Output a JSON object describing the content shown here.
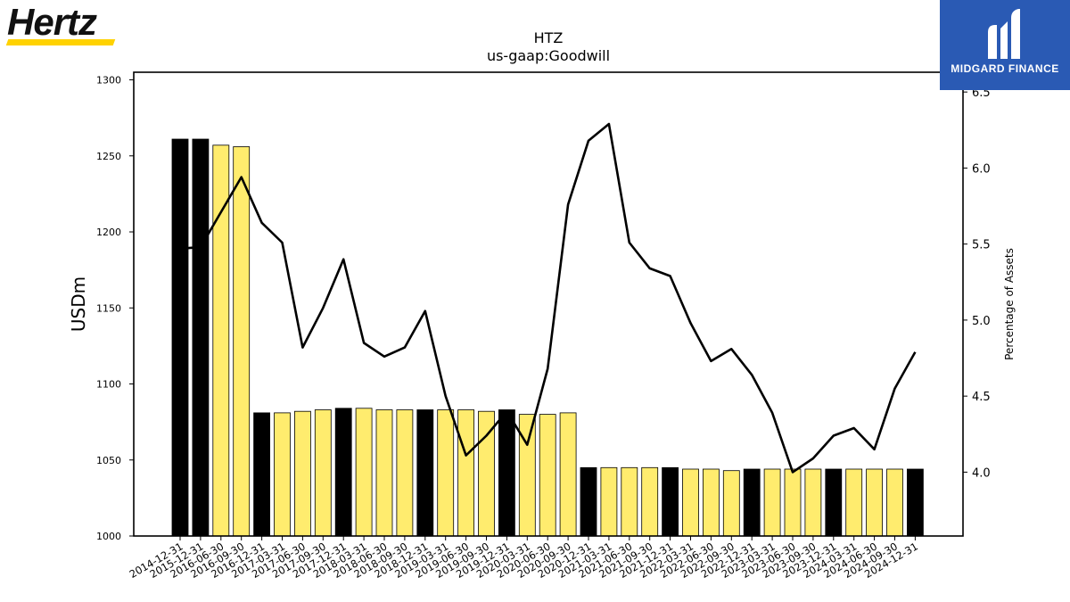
{
  "logos": {
    "hertz": "Hertz",
    "midgard": "MIDGARD FINANCE"
  },
  "colors": {
    "bar_dark": "#000000",
    "bar_light": "#ffec6e",
    "line": "#000000",
    "midgard_blue": "#2a5ab4",
    "hertz_yellow": "#ffd200"
  },
  "chart_data": {
    "type": "bar",
    "title": "HTZ",
    "subtitle": "us-gaap:Goodwill",
    "ylabel": "USDm",
    "y2label": "Percentage of Assets",
    "ylim": [
      1000,
      1305
    ],
    "y2lim": [
      3.58,
      6.63
    ],
    "yticks": [
      "1000",
      "1050",
      "1100",
      "1150",
      "1200",
      "1250",
      "1300"
    ],
    "y2ticks": [
      "4.0",
      "4.5",
      "5.0",
      "5.5",
      "6.0",
      "6.5"
    ],
    "categories": [
      "2014-12-31",
      "2015-12-31",
      "2016-06-30",
      "2016-09-30",
      "2016-12-31",
      "2017-03-31",
      "2017-06-30",
      "2017-09-30",
      "2017-12-31",
      "2018-03-31",
      "2018-06-30",
      "2018-09-30",
      "2018-12-31",
      "2019-03-31",
      "2019-06-30",
      "2019-09-30",
      "2019-12-31",
      "2020-03-31",
      "2020-06-30",
      "2020-09-30",
      "2020-12-31",
      "2021-03-31",
      "2021-06-30",
      "2021-09-30",
      "2021-12-31",
      "2022-03-31",
      "2022-06-30",
      "2022-09-30",
      "2022-12-31",
      "2023-03-31",
      "2023-06-30",
      "2023-09-30",
      "2023-12-31",
      "2024-03-31",
      "2024-06-30",
      "2024-09-30",
      "2024-12-31"
    ],
    "series": [
      {
        "type": "bar",
        "axis": "left",
        "values": [
          1261,
          1261,
          1257,
          1256,
          1081,
          1081,
          1082,
          1083,
          1084,
          1084,
          1083,
          1083,
          1083,
          1083,
          1083,
          1082,
          1083,
          1080,
          1080,
          1081,
          1045,
          1045,
          1045,
          1045,
          1045,
          1044,
          1044,
          1043,
          1044,
          1044,
          1044,
          1044,
          1044,
          1044,
          1044,
          1044,
          1044
        ],
        "dark": [
          true,
          true,
          false,
          false,
          true,
          false,
          false,
          false,
          true,
          false,
          false,
          false,
          true,
          false,
          false,
          false,
          true,
          false,
          false,
          false,
          true,
          false,
          false,
          false,
          true,
          false,
          false,
          false,
          true,
          false,
          false,
          false,
          true,
          false,
          false,
          false,
          true
        ]
      },
      {
        "type": "line",
        "axis": "right",
        "values": [
          5.47,
          5.48,
          5.71,
          5.94,
          5.64,
          5.51,
          4.82,
          5.08,
          5.4,
          4.85,
          4.76,
          4.82,
          5.06,
          4.5,
          4.11,
          4.24,
          4.4,
          4.18,
          4.68,
          5.76,
          6.18,
          6.29,
          5.51,
          5.34,
          5.29,
          4.98,
          4.73,
          4.81,
          4.64,
          4.39,
          4.0,
          4.09,
          4.24,
          4.29,
          4.15,
          4.55,
          4.79
        ]
      }
    ]
  }
}
